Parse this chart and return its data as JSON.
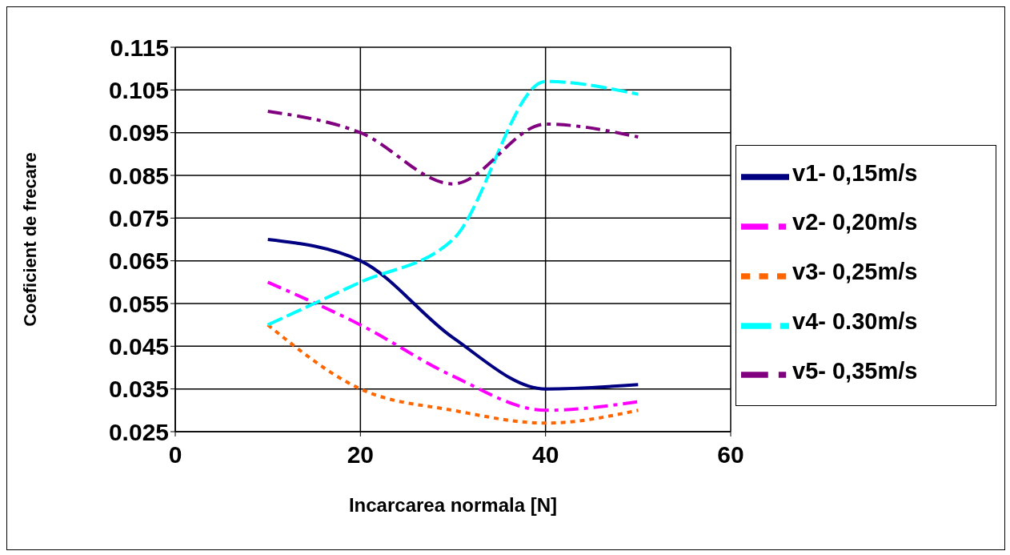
{
  "chart_data": {
    "type": "line",
    "xlabel": "Incarcarea normala [N]",
    "ylabel": "Coeficient de frecare",
    "x": [
      10,
      20,
      30,
      40,
      50
    ],
    "series": [
      {
        "name": "v1- 0,15m/s",
        "color": "#000080",
        "line_style": "solid",
        "values": [
          0.07,
          0.065,
          0.047,
          0.035,
          0.036
        ]
      },
      {
        "name": "v2- 0,20m/s",
        "color": "#ff00ff",
        "line_style": "dashdot",
        "values": [
          0.06,
          0.05,
          0.038,
          0.03,
          0.032
        ]
      },
      {
        "name": "v3- 0,25m/s",
        "color": "#ff6600",
        "line_style": "dotted",
        "values": [
          0.05,
          0.035,
          0.03,
          0.027,
          0.03
        ]
      },
      {
        "name": "v4- 0.30m/s",
        "color": "#00ffff",
        "line_style": "dashed",
        "values": [
          0.05,
          0.06,
          0.07,
          0.107,
          0.104
        ]
      },
      {
        "name": "v5- 0,35m/s",
        "color": "#800080",
        "line_style": "dashdot",
        "values": [
          0.1,
          0.095,
          0.083,
          0.097,
          0.094
        ]
      }
    ],
    "xlim": [
      0,
      60
    ],
    "xticks": [
      0,
      20,
      40,
      60
    ],
    "ylim": [
      0.025,
      0.115
    ],
    "yticks": [
      0.025,
      0.035,
      0.045,
      0.055,
      0.065,
      0.075,
      0.085,
      0.095,
      0.105,
      0.115
    ],
    "grid": true,
    "legend": "right",
    "marker": "none"
  }
}
